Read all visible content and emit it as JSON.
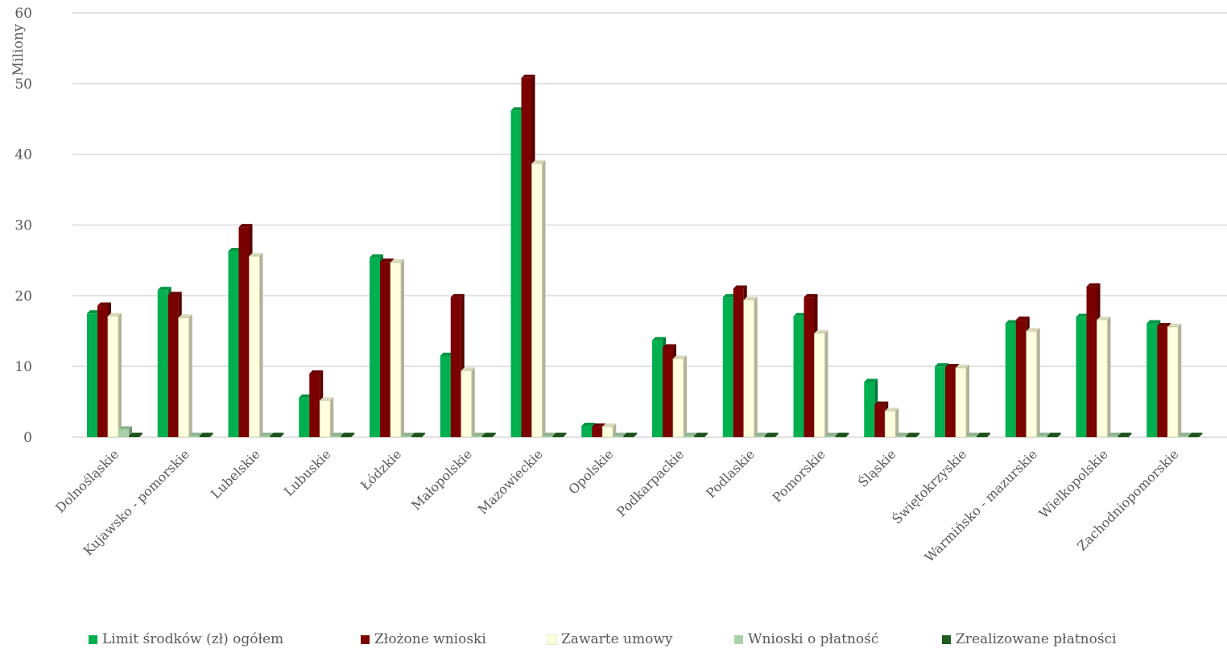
{
  "chart_data": {
    "type": "bar",
    "ylabel": "Miliony",
    "xlabel": "",
    "ylim": [
      0,
      60
    ],
    "yticks": [
      0,
      10,
      20,
      30,
      40,
      50,
      60
    ],
    "grid": true,
    "legend_position": "bottom",
    "categories": [
      "Dolnośląskie",
      "Kujawsko - pomorskie",
      "Lubelskie",
      "Lubuskie",
      "Łódzkie",
      "Małopolskie",
      "Mazowieckie",
      "Opolskie",
      "Podkarpackie",
      "Podlaskie",
      "Pomorskie",
      "Śląskie",
      "Świętokrzyskie",
      "Warmińsko - mazurskie",
      "Wielkopolskie",
      "Zachodniopomorskie"
    ],
    "series": [
      {
        "name": "Limit środków (zł) ogółem",
        "color": "#00b050",
        "values": [
          17.5,
          20.8,
          26.3,
          5.6,
          25.4,
          11.5,
          46.2,
          1.6,
          13.7,
          19.8,
          17.1,
          7.8,
          10.0,
          16.1,
          17.0,
          16.1
        ]
      },
      {
        "name": "Złożone wnioski",
        "color": "#7b0000",
        "values": [
          18.6,
          20.1,
          29.7,
          9.0,
          24.8,
          19.8,
          50.8,
          1.5,
          12.7,
          21.0,
          19.8,
          4.6,
          9.9,
          16.6,
          21.3,
          15.7
        ]
      },
      {
        "name": "Zawarte umowy",
        "color": "#ffffe0",
        "values": [
          17.1,
          16.9,
          25.6,
          5.2,
          24.7,
          9.4,
          38.7,
          1.5,
          11.1,
          19.4,
          14.7,
          3.7,
          9.8,
          15.0,
          16.6,
          15.6
        ]
      },
      {
        "name": "Wnioski o płatność",
        "color": "#a9d1a9",
        "values": [
          1.1,
          0,
          0,
          0,
          0,
          0,
          0,
          0,
          0,
          0,
          0,
          0,
          0,
          0,
          0,
          0
        ]
      },
      {
        "name": "Zrealizowane płatności",
        "color": "#1e5e1e",
        "values": [
          0.1,
          0,
          0,
          0,
          0,
          0,
          0,
          0,
          0,
          0,
          0,
          0,
          0,
          0,
          0,
          0
        ]
      }
    ]
  }
}
